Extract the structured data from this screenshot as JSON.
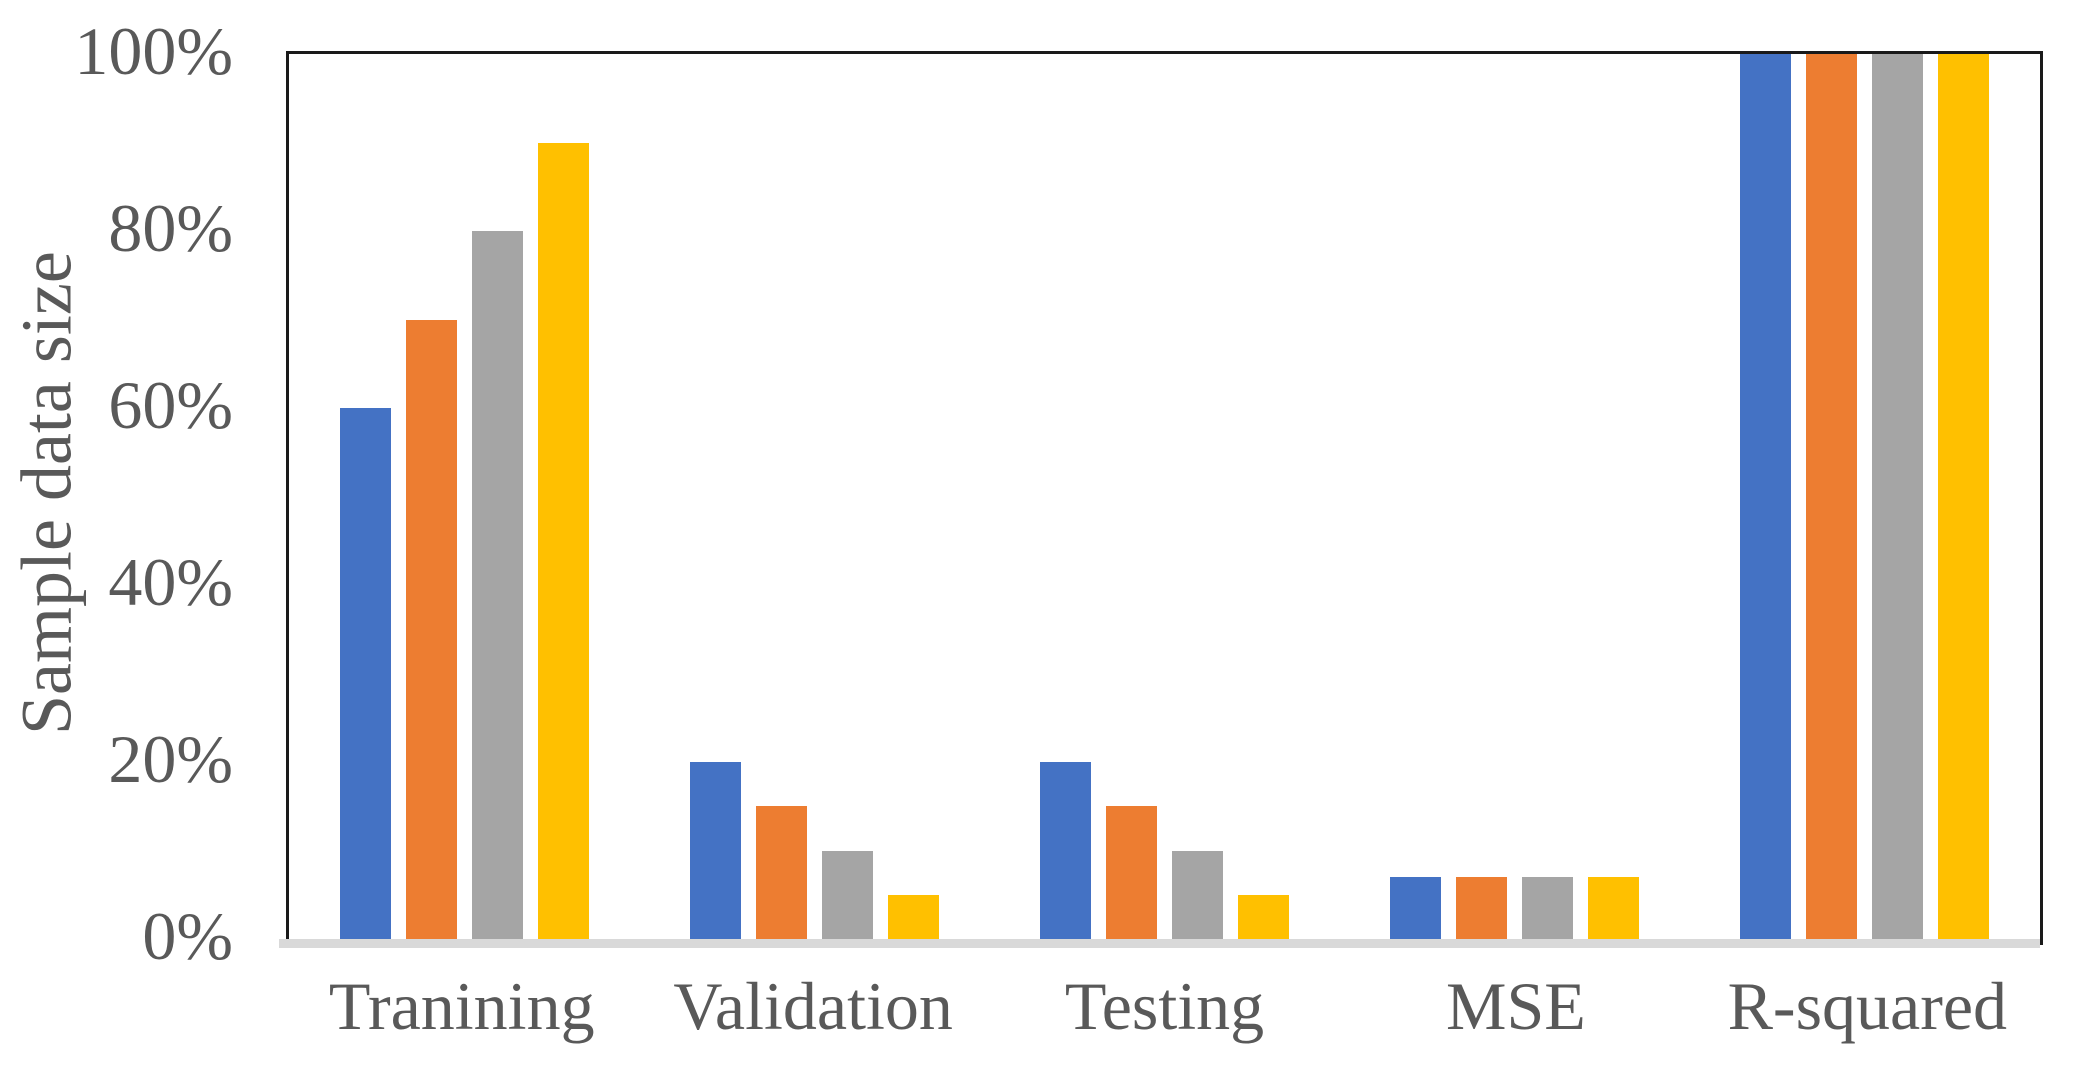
{
  "chart_data": {
    "type": "bar",
    "title": "",
    "xlabel": "",
    "ylabel": "Sample data size",
    "categories": [
      "Tranining",
      "Validation",
      "Testing",
      "MSE",
      "R-squared"
    ],
    "series": [
      {
        "name": "blue",
        "color": "#4472C4",
        "values": [
          60,
          20,
          20,
          7,
          100
        ]
      },
      {
        "name": "orange",
        "color": "#ED7D31",
        "values": [
          70,
          15,
          15,
          7,
          100
        ]
      },
      {
        "name": "gray",
        "color": "#A5A5A5",
        "values": [
          80,
          10,
          10,
          7,
          100
        ]
      },
      {
        "name": "yellow",
        "color": "#FFC000",
        "values": [
          90,
          5,
          5,
          7,
          100
        ]
      }
    ],
    "y_axis": {
      "min": 0,
      "max": 100,
      "unit": "%",
      "tick_labels": [
        "0%",
        "20%",
        "40%",
        "60%",
        "80%",
        "100%"
      ],
      "tick_values": [
        0,
        20,
        40,
        60,
        80,
        100
      ]
    },
    "legend": "none",
    "grid": "off",
    "colors": {
      "text": "#595959",
      "plot_border": "#1a1a1a",
      "baseline": "#D9D9D9",
      "background": "#FFFFFF"
    }
  }
}
